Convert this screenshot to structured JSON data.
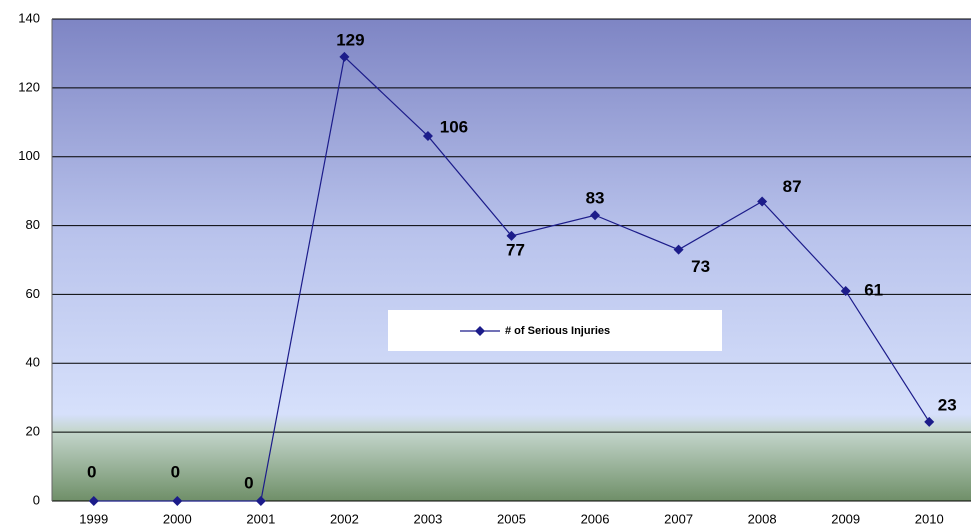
{
  "chart_data": {
    "type": "line",
    "categories": [
      "1999",
      "2000",
      "2001",
      "2002",
      "2003",
      "2005",
      "2006",
      "2007",
      "2008",
      "2009",
      "2010"
    ],
    "series": [
      {
        "name": "# of Serious Injuries",
        "color": "#1c1c8a",
        "values": [
          0,
          0,
          0,
          129,
          106,
          77,
          83,
          73,
          87,
          61,
          23
        ]
      }
    ],
    "ylim": [
      0,
      140
    ],
    "yticks": [
      0,
      20,
      40,
      60,
      80,
      100,
      120,
      140
    ],
    "grid": true,
    "legend": "center"
  }
}
